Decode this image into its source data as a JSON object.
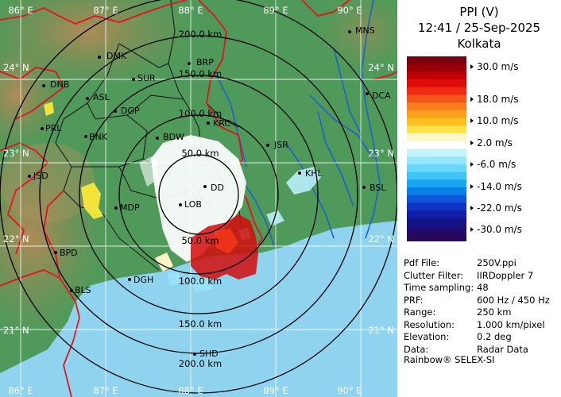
{
  "panel": {
    "title_line1": "PPI (V)",
    "title_line2": "12:41 / 25-Sep-2025",
    "title_line3": "Kolkata"
  },
  "legend": {
    "unit": "m/s",
    "colors": [
      "#7a0010",
      "#9a0008",
      "#c00000",
      "#dd0a0a",
      "#ee2a12",
      "#f5541a",
      "#fa7d1c",
      "#fca020",
      "#fdc11f",
      "#fee24a",
      "#fff6c8",
      "#ffffff",
      "#c6f2fc",
      "#98e6fa",
      "#6ad6f8",
      "#3fc4f5",
      "#17a6f0",
      "#0a7fe6",
      "#0c56d8",
      "#1035c4",
      "#121fa8",
      "#14148a",
      "#1e0c70",
      "#2a0858"
    ],
    "labels": [
      {
        "text": "30.0 m/s",
        "value": 30
      },
      {
        "text": "18.0 m/s",
        "value": 18
      },
      {
        "text": "10.0 m/s",
        "value": 10
      },
      {
        "text": "2.0 m/s",
        "value": 2
      },
      {
        "text": "-6.0 m/s",
        "value": -6
      },
      {
        "text": "-14.0 m/s",
        "value": -14
      },
      {
        "text": "-22.0 m/s",
        "value": -22
      },
      {
        "text": "-30.0 m/s",
        "value": -30
      }
    ]
  },
  "meta": [
    {
      "key": "Pdf File:",
      "value": "250V.ppi"
    },
    {
      "key": "Clutter Filter:",
      "value": "IIRDoppler 7"
    },
    {
      "key": "Time sampling:",
      "value": "48"
    },
    {
      "key": "PRF:",
      "value": "600 Hz / 450 Hz"
    },
    {
      "key": "Range:",
      "value": "250 km"
    },
    {
      "key": "Resolution:",
      "value": "1.000 km/pixel"
    },
    {
      "key": "Elevation:",
      "value": "0.2 deg"
    },
    {
      "key": "Data:",
      "value": "Radar Data"
    }
  ],
  "footer": "Rainbow® SELEX-SI",
  "map": {
    "colors": {
      "land_plain": "#4f9a5a",
      "land_hill": "#8a7a52",
      "sea": "#8fd3ee",
      "rivers": "#2060c8",
      "borders": "#e0141e",
      "districts": "#1a1a1a",
      "range_rings": "#000000",
      "grid": "#ffffff"
    },
    "lon_labels_top": [
      "86° E",
      "87° E",
      "88° E",
      "89° E",
      "90° E"
    ],
    "lon_labels_bottom": [
      "86° E",
      "87° E",
      "88° E",
      "89° E",
      "90° E"
    ],
    "lat_labels_left": [
      "24° N",
      "23° N",
      "22° N",
      "21° N"
    ],
    "lat_labels_right": [
      "24° N",
      "23° N",
      "22° N",
      "21° N"
    ],
    "range_labels": [
      "200.0 km",
      "150.0 km",
      "100.0 km",
      "50.0 km",
      "50.0 km",
      "100.0 km",
      "150.0 km",
      "200.0 km"
    ],
    "stations": [
      "DMK",
      "BRP",
      "MNS",
      "DNB",
      "SUR",
      "ASL",
      "DGP",
      "DCA",
      "PRL",
      "BNK",
      "KRC",
      "BDW",
      "JSR",
      "KHL",
      "JSD",
      "DD",
      "BSL",
      "MDP",
      "LOB",
      "BPD",
      "DGH",
      "BLS",
      "SHD"
    ]
  }
}
